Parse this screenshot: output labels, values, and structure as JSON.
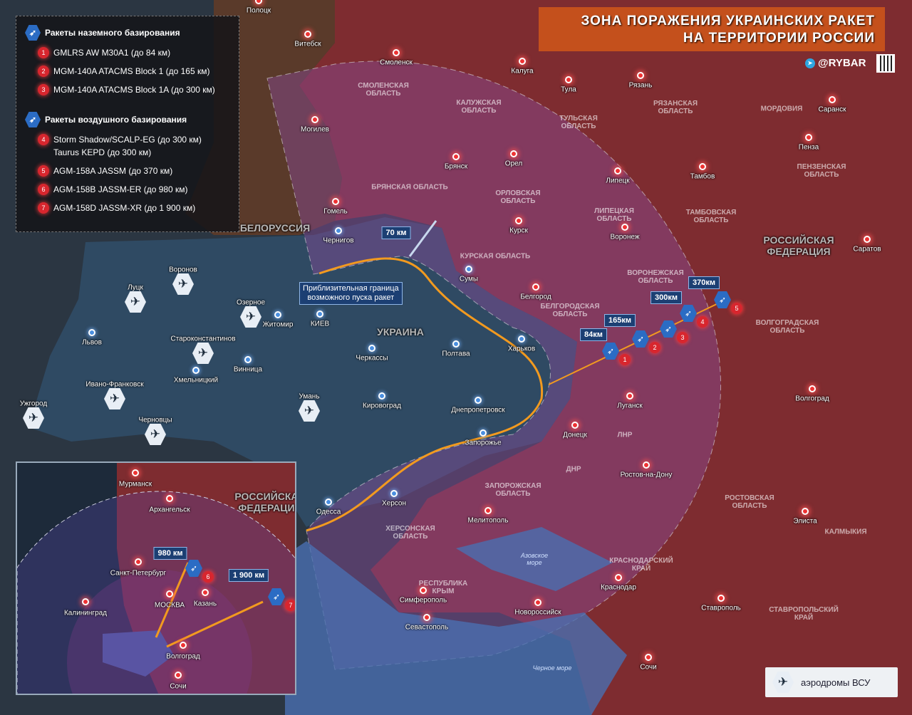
{
  "title": {
    "line1": "ЗОНА ПОРАЖЕНИЯ УКРАИНСКИХ РАКЕТ",
    "line2": "НА ТЕРРИТОРИИ РОССИИ"
  },
  "brand": {
    "handle": "@RYBAR",
    "icon": "telegram-icon"
  },
  "legend": {
    "ground_heading": "Ракеты наземного базирования",
    "ground": [
      {
        "num": "1",
        "label": "GMLRS AW M30A1 (до 84 км)"
      },
      {
        "num": "2",
        "label": "MGM-140A ATACMS Block 1 (до 165 км)"
      },
      {
        "num": "3",
        "label": "MGM-140A ATACMS Block 1A (до 300 км)"
      }
    ],
    "air_heading": "Ракеты воздушного базирования",
    "air": [
      {
        "num": "4",
        "label": "Storm Shadow/SCALP-EG (до 300 км)",
        "label2": "Taurus KEPD (до 300 км)"
      },
      {
        "num": "5",
        "label": "AGM-158A JASSM (до 370 км)"
      },
      {
        "num": "6",
        "label": "AGM-158B JASSM-ER (до 980 км)"
      },
      {
        "num": "7",
        "label": "AGM-158D JASSM-XR (до 1 900 км)"
      }
    ]
  },
  "colors": {
    "russia": "#8a2f33",
    "ukraine": "#2f4a63",
    "range_zone": "#7a3a78",
    "title_bg": "#c4501c",
    "launch_line": "#f29a1f",
    "missile_badge": "#2b6cc4"
  },
  "cities_ru": [
    "Полоцк",
    "Витебск",
    "Смоленск",
    "Калуга",
    "Тула",
    "Рязань",
    "Могилев",
    "Брянск",
    "Орел",
    "Липецк",
    "Тамбов",
    "Пенза",
    "Саранск",
    "Курск",
    "Воронеж",
    "Белгород",
    "Саратов",
    "Луганск",
    "Донецк",
    "Ростов-на-Дону",
    "Волгоград",
    "Мелитополь",
    "Элиста",
    "Краснодар",
    "Симферополь",
    "Севастополь",
    "Новороссийск",
    "Ставрополь",
    "Сочи",
    "Гомель"
  ],
  "cities_ua": [
    "Чернигов",
    "Сумы",
    "Харьков",
    "Полтава",
    "Черкассы",
    "КИЕВ",
    "Житомир",
    "Винница",
    "Хмельницкий",
    "Кировоград",
    "Днепропетровск",
    "Запорожье",
    "Одесса",
    "Херсон",
    "Львов"
  ],
  "airfields": [
    "Луцк",
    "Воронов",
    "Озерное",
    "Староконстантинов",
    "Ивано-Франковск",
    "Черновцы",
    "Ужгород",
    "Умань"
  ],
  "regions": [
    "СМОЛЕНСКАЯ\nОБЛАСТЬ",
    "КАЛУЖСКАЯ\nОБЛАСТЬ",
    "ТУЛЬСКАЯ\nОБЛАСТЬ",
    "РЯЗАНСКАЯ\nОБЛАСТЬ",
    "МОРДОВИЯ",
    "ПЕНЗЕНСКАЯ\nОБЛАСТЬ",
    "ТАМБОВСКАЯ\nОБЛАСТЬ",
    "ЛИПЕЦКАЯ\nОБЛАСТЬ",
    "ОРЛОВСКАЯ\nОБЛАСТЬ",
    "БРЯНСКАЯ ОБЛАСТЬ",
    "КУРСКАЯ ОБЛАСТЬ",
    "ВОРОНЕЖСКАЯ\nОБЛАСТЬ",
    "БЕЛГОРОДСКАЯ\nОБЛАСТЬ",
    "ВОЛГОГРАДСКАЯ\nОБЛАСТЬ",
    "ЛНР",
    "ДНР",
    "ЗАПОРОЖСКАЯ\nОБЛАСТЬ",
    "ХЕРСОНСКАЯ\nОБЛАСТЬ",
    "РЕСПУБЛИКА\nКРЫМ",
    "КРАСНОДАРСКИЙ\nКРАЙ",
    "РОСТОВСКАЯ\nОБЛАСТЬ",
    "КАЛМЫКИЯ",
    "СТАВРОПОЛЬСКИЙ\nКРАЙ"
  ],
  "countries": [
    "РОССИЙСКАЯ\nФЕДЕРАЦИЯ",
    "БЕЛОРУССИЯ",
    "УКРАИНА"
  ],
  "seas": [
    "Азовское\nморе",
    "Черное море"
  ],
  "ranges": [
    "70 км",
    "84км",
    "165км",
    "300км",
    "370км"
  ],
  "launch_note": "Приблизительная граница\nвозможного пуска ракет",
  "inset": {
    "country": "РОССИЙСКАЯ\nФЕДЕРАЦИЯ",
    "cities": [
      "Мурманск",
      "Архангельск",
      "Санкт-Петербург",
      "МОСКВА",
      "Казань",
      "Калининград",
      "Волгоград",
      "Сочи"
    ],
    "ranges": [
      "980 км",
      "1 900 км"
    ]
  },
  "airfields_legend": "аэродромы ВСУ"
}
